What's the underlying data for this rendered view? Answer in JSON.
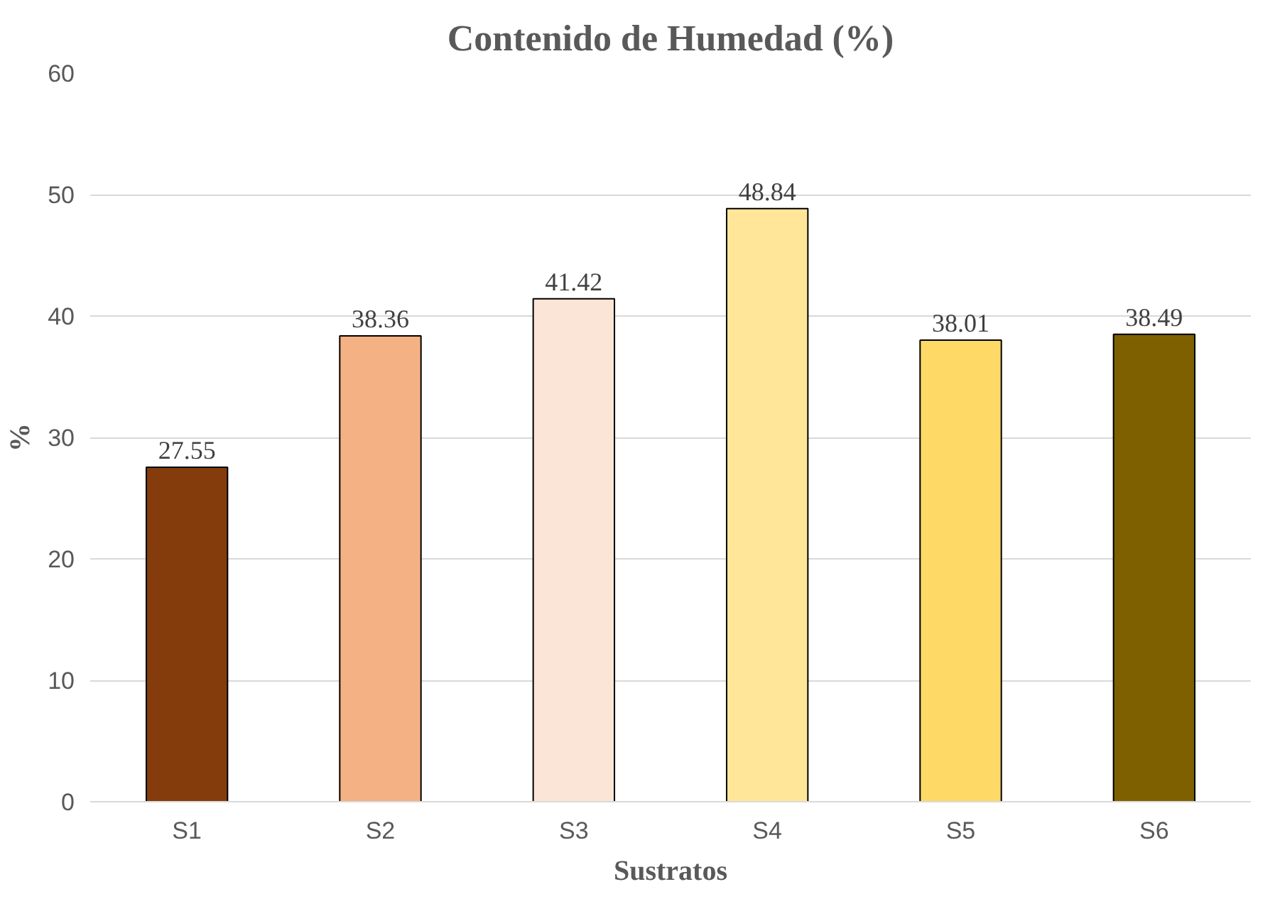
{
  "chart_data": {
    "type": "bar",
    "title": "Contenido de Humedad (%)",
    "xlabel": "Sustratos",
    "ylabel": "%",
    "categories": [
      "S1",
      "S2",
      "S3",
      "S4",
      "S5",
      "S6"
    ],
    "values": [
      27.55,
      38.36,
      41.42,
      48.84,
      38.01,
      38.49
    ],
    "colors": [
      "#843c0c",
      "#f4b183",
      "#fbe5d6",
      "#ffe699",
      "#ffd966",
      "#7f6000"
    ],
    "ylim": [
      0,
      60
    ],
    "yticks": [
      0,
      10,
      20,
      30,
      40,
      50,
      60
    ],
    "grid": "y",
    "data_labels": true
  }
}
